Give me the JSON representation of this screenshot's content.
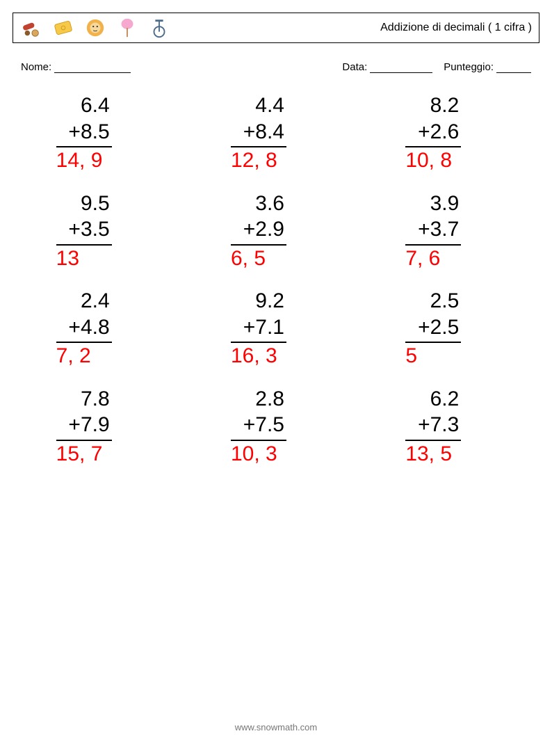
{
  "header": {
    "title": "Addizione di decimali ( 1 cifra )",
    "icons": [
      "cannon-icon",
      "ticket-icon",
      "lion-icon",
      "cotton-candy-icon",
      "unicycle-icon"
    ]
  },
  "labels": {
    "name": "Nome:",
    "date": "Data:",
    "score": "Punteggio:"
  },
  "style": {
    "answer_color": "#ff0000",
    "text_color": "#000000",
    "font_size_problem": 30,
    "font_size_header": 16,
    "font_size_info": 15,
    "border_color": "#000000",
    "background": "#ffffff"
  },
  "layout": {
    "columns": 3,
    "rows": 4
  },
  "problems": [
    {
      "a": "6.4",
      "b": "8.5",
      "ans": "14, 9"
    },
    {
      "a": "4.4",
      "b": "8.4",
      "ans": "12, 8"
    },
    {
      "a": "8.2",
      "b": "2.6",
      "ans": "10, 8"
    },
    {
      "a": "9.5",
      "b": "3.5",
      "ans": "13"
    },
    {
      "a": "3.6",
      "b": "2.9",
      "ans": "6, 5"
    },
    {
      "a": "3.9",
      "b": "3.7",
      "ans": "7, 6"
    },
    {
      "a": "2.4",
      "b": "4.8",
      "ans": "7, 2"
    },
    {
      "a": "9.2",
      "b": "7.1",
      "ans": "16, 3"
    },
    {
      "a": "2.5",
      "b": "2.5",
      "ans": "5"
    },
    {
      "a": "7.8",
      "b": "7.9",
      "ans": "15, 7"
    },
    {
      "a": "2.8",
      "b": "7.5",
      "ans": "10, 3"
    },
    {
      "a": "6.2",
      "b": "7.3",
      "ans": "13, 5"
    }
  ],
  "footer": {
    "url": "www.snowmath.com"
  }
}
